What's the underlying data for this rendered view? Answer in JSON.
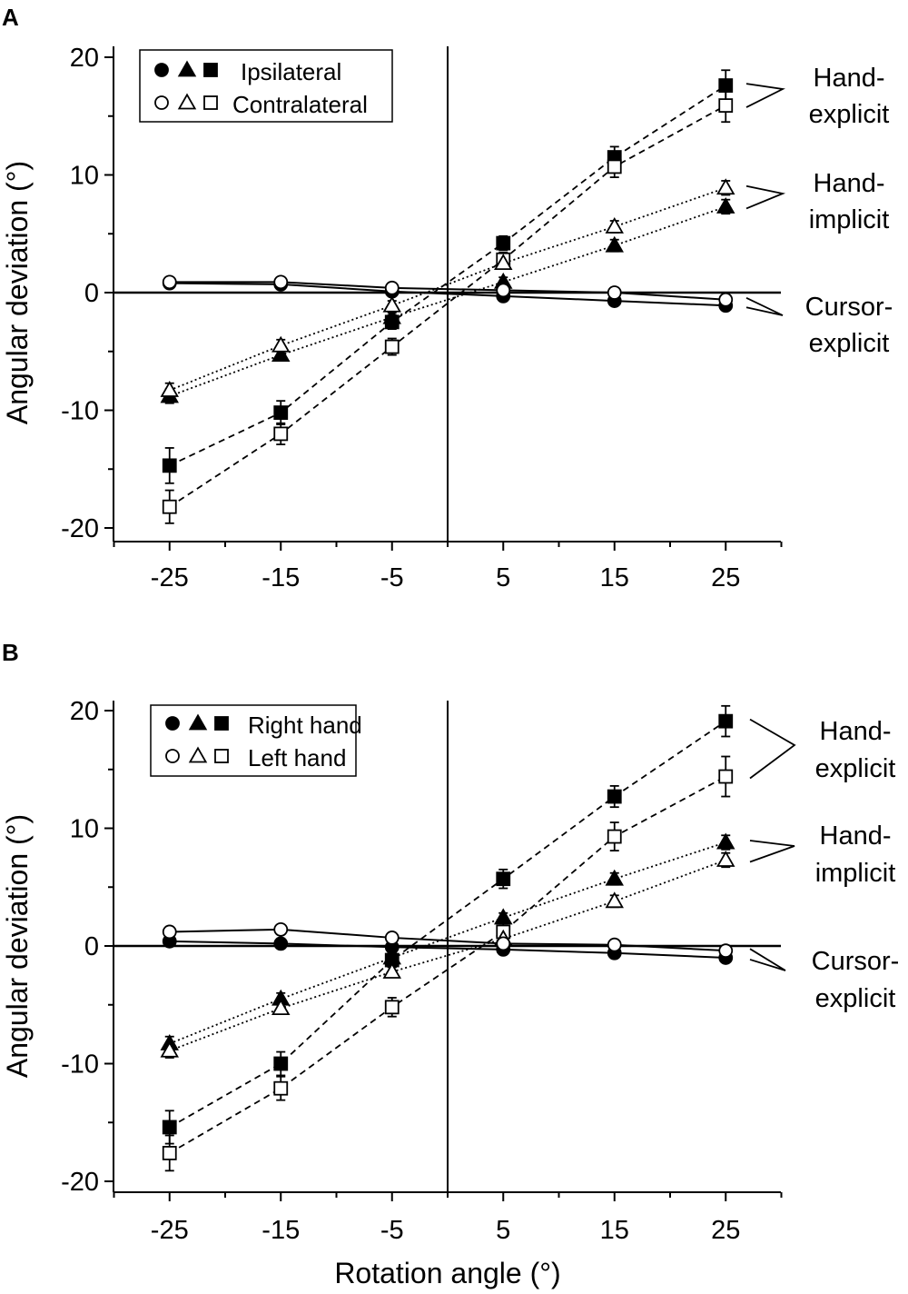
{
  "figure": {
    "x_axis_title": "Rotation angle (°)"
  },
  "chart_data": [
    {
      "type": "line",
      "panel_label": "A",
      "xlabel": "",
      "ylabel": "Angular deviation (°)",
      "x": [
        -25,
        -15,
        -5,
        5,
        15,
        25
      ],
      "xlim": [
        -30,
        30
      ],
      "ylim": [
        -21,
        21
      ],
      "x_ticks": [
        -25,
        -15,
        -5,
        5,
        15,
        25
      ],
      "y_ticks": [
        -20,
        -10,
        0,
        10,
        20
      ],
      "legend": {
        "position": "top-left",
        "entries": [
          {
            "label": "Ipsilateral",
            "filled": true
          },
          {
            "label": "Contralateral",
            "filled": false
          }
        ]
      },
      "annotations": [
        {
          "lines": [
            "Hand-",
            "explicit"
          ],
          "group": "hand-explicit"
        },
        {
          "lines": [
            "Hand-",
            "implicit"
          ],
          "group": "hand-implicit"
        },
        {
          "lines": [
            "Cursor-",
            "explicit"
          ],
          "group": "cursor-explicit"
        }
      ],
      "series": [
        {
          "name": "Hand-explicit (Ipsilateral)",
          "group": "hand-explicit",
          "marker": "square",
          "filled": true,
          "line": "dashed",
          "values": [
            -14.7,
            -10.2,
            -2.5,
            4.2,
            11.5,
            17.6
          ],
          "errors": [
            1.5,
            1.0,
            0.6,
            0.6,
            0.9,
            1.3
          ]
        },
        {
          "name": "Hand-explicit (Contralateral)",
          "group": "hand-explicit",
          "marker": "square",
          "filled": false,
          "line": "dashed",
          "values": [
            -18.2,
            -12.0,
            -4.6,
            2.8,
            10.7,
            15.9
          ],
          "errors": [
            1.4,
            0.9,
            0.7,
            0.6,
            0.9,
            1.4
          ]
        },
        {
          "name": "Hand-implicit (Ipsilateral)",
          "group": "hand-implicit",
          "marker": "triangle",
          "filled": true,
          "line": "dotted",
          "values": [
            -8.8,
            -5.3,
            -2.1,
            0.9,
            4.0,
            7.3
          ],
          "errors": [
            0.6,
            0.5,
            0.4,
            0.4,
            0.5,
            0.6
          ]
        },
        {
          "name": "Hand-implicit (Contralateral)",
          "group": "hand-implicit",
          "marker": "triangle",
          "filled": false,
          "line": "dotted",
          "values": [
            -8.3,
            -4.5,
            -1.1,
            2.5,
            5.6,
            8.9
          ],
          "errors": [
            0.6,
            0.5,
            0.4,
            0.4,
            0.5,
            0.6
          ]
        },
        {
          "name": "Cursor-explicit (Ipsilateral)",
          "group": "cursor-explicit",
          "marker": "circle",
          "filled": true,
          "line": "solid",
          "values": [
            0.8,
            0.7,
            0.1,
            -0.3,
            -0.7,
            -1.1
          ],
          "errors": [
            0.3,
            0.3,
            0.3,
            0.3,
            0.3,
            0.3
          ]
        },
        {
          "name": "Cursor-explicit (Contralateral)",
          "group": "cursor-explicit",
          "marker": "circle",
          "filled": false,
          "line": "solid",
          "values": [
            0.9,
            0.9,
            0.4,
            0.2,
            0.0,
            -0.6
          ],
          "errors": [
            0.3,
            0.3,
            0.3,
            0.3,
            0.3,
            0.3
          ]
        }
      ]
    },
    {
      "type": "line",
      "panel_label": "B",
      "xlabel": "Rotation angle (°)",
      "ylabel": "Angular deviation (°)",
      "x": [
        -25,
        -15,
        -5,
        5,
        15,
        25
      ],
      "xlim": [
        -30,
        30
      ],
      "ylim": [
        -21,
        21
      ],
      "x_ticks": [
        -25,
        -15,
        -5,
        5,
        15,
        25
      ],
      "y_ticks": [
        -20,
        -10,
        0,
        10,
        20
      ],
      "legend": {
        "position": "top-left",
        "entries": [
          {
            "label": "Right hand",
            "filled": true
          },
          {
            "label": "Left hand",
            "filled": false
          }
        ]
      },
      "annotations": [
        {
          "lines": [
            "Hand-",
            "explicit"
          ],
          "group": "hand-explicit"
        },
        {
          "lines": [
            "Hand-",
            "implicit"
          ],
          "group": "hand-implicit"
        },
        {
          "lines": [
            "Cursor-",
            "explicit"
          ],
          "group": "cursor-explicit"
        }
      ],
      "series": [
        {
          "name": "Hand-explicit (Right hand)",
          "group": "hand-explicit",
          "marker": "square",
          "filled": true,
          "line": "dashed",
          "values": [
            -15.4,
            -10.0,
            -1.2,
            5.7,
            12.7,
            19.1
          ],
          "errors": [
            1.4,
            1.0,
            0.6,
            0.8,
            0.9,
            1.3
          ]
        },
        {
          "name": "Hand-explicit (Left hand)",
          "group": "hand-explicit",
          "marker": "square",
          "filled": false,
          "line": "dashed",
          "values": [
            -17.6,
            -12.1,
            -5.2,
            1.2,
            9.3,
            14.4
          ],
          "errors": [
            1.5,
            1.0,
            0.8,
            0.7,
            1.2,
            1.7
          ]
        },
        {
          "name": "Hand-implicit (Right hand)",
          "group": "hand-implicit",
          "marker": "triangle",
          "filled": true,
          "line": "dotted",
          "values": [
            -8.3,
            -4.5,
            -1.0,
            2.4,
            5.7,
            8.8
          ],
          "errors": [
            0.6,
            0.5,
            0.4,
            0.4,
            0.5,
            0.6
          ]
        },
        {
          "name": "Hand-implicit (Left hand)",
          "group": "hand-implicit",
          "marker": "triangle",
          "filled": false,
          "line": "dotted",
          "values": [
            -8.9,
            -5.3,
            -2.2,
            0.6,
            3.8,
            7.3
          ],
          "errors": [
            0.6,
            0.5,
            0.4,
            0.4,
            0.5,
            0.6
          ]
        },
        {
          "name": "Cursor-explicit (Right hand)",
          "group": "cursor-explicit",
          "marker": "circle",
          "filled": true,
          "line": "solid",
          "values": [
            0.4,
            0.2,
            -0.1,
            -0.3,
            -0.6,
            -1.0
          ],
          "errors": [
            0.3,
            0.3,
            0.3,
            0.3,
            0.3,
            0.3
          ]
        },
        {
          "name": "Cursor-explicit (Left hand)",
          "group": "cursor-explicit",
          "marker": "circle",
          "filled": false,
          "line": "solid",
          "values": [
            1.2,
            1.4,
            0.7,
            0.2,
            0.1,
            -0.4
          ],
          "errors": [
            0.3,
            0.3,
            0.3,
            0.3,
            0.3,
            0.3
          ]
        }
      ]
    }
  ]
}
